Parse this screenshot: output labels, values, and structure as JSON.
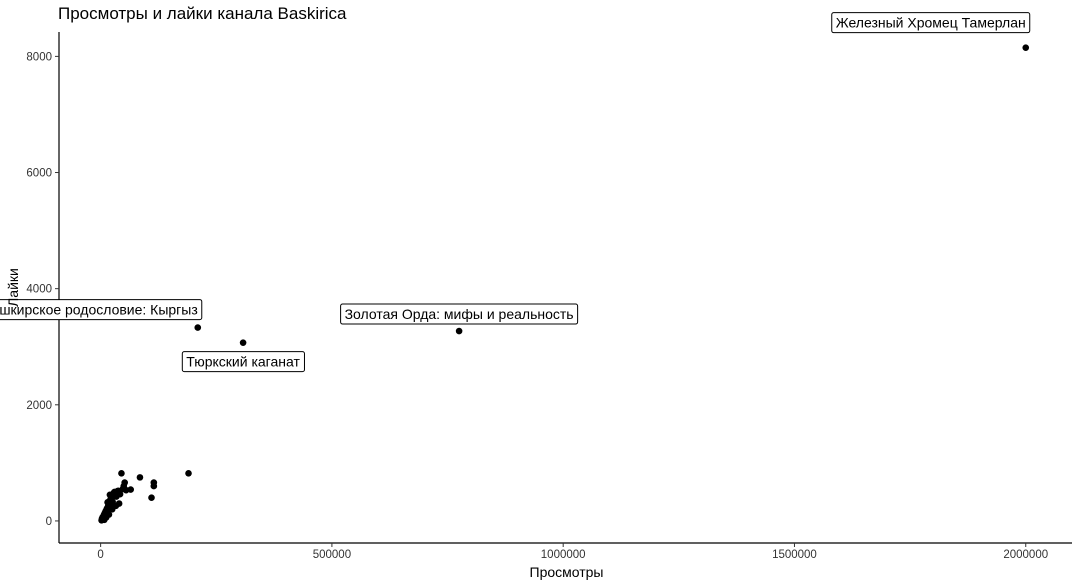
{
  "chart_data": {
    "type": "scatter",
    "title": "Просмотры и лайки канала Baskirica",
    "xlabel": "Просмотры",
    "ylabel": "Лайки",
    "xlim": [
      -90000,
      2100000
    ],
    "ylim": [
      -380,
      8420
    ],
    "x_ticks": [
      0,
      500000,
      1000000,
      1500000,
      2000000
    ],
    "x_tick_labels": [
      "0",
      "500000",
      "1000000",
      "1500000",
      "2000000"
    ],
    "y_ticks": [
      0,
      2000,
      4000,
      6000,
      8000
    ],
    "y_tick_labels": [
      "0",
      "2000",
      "4000",
      "6000",
      "8000"
    ],
    "grid": false,
    "points": [
      {
        "x": 2000,
        "y": 10
      },
      {
        "x": 3000,
        "y": 40
      },
      {
        "x": 4000,
        "y": 60
      },
      {
        "x": 5000,
        "y": 30
      },
      {
        "x": 6000,
        "y": 80
      },
      {
        "x": 7000,
        "y": 100
      },
      {
        "x": 8000,
        "y": 120
      },
      {
        "x": 9000,
        "y": 90
      },
      {
        "x": 10000,
        "y": 150
      },
      {
        "x": 11000,
        "y": 170
      },
      {
        "x": 12000,
        "y": 140
      },
      {
        "x": 13000,
        "y": 200
      },
      {
        "x": 14000,
        "y": 220
      },
      {
        "x": 15000,
        "y": 180
      },
      {
        "x": 16000,
        "y": 250
      },
      {
        "x": 17000,
        "y": 270
      },
      {
        "x": 18000,
        "y": 300
      },
      {
        "x": 19000,
        "y": 320
      },
      {
        "x": 20000,
        "y": 350
      },
      {
        "x": 21000,
        "y": 280
      },
      {
        "x": 22000,
        "y": 380
      },
      {
        "x": 23000,
        "y": 400
      },
      {
        "x": 24000,
        "y": 420
      },
      {
        "x": 25000,
        "y": 440
      },
      {
        "x": 26000,
        "y": 330
      },
      {
        "x": 27000,
        "y": 460
      },
      {
        "x": 28000,
        "y": 480
      },
      {
        "x": 30000,
        "y": 500
      },
      {
        "x": 32000,
        "y": 470
      },
      {
        "x": 34000,
        "y": 420
      },
      {
        "x": 36000,
        "y": 510
      },
      {
        "x": 38000,
        "y": 520
      },
      {
        "x": 40000,
        "y": 300
      },
      {
        "x": 42000,
        "y": 460
      },
      {
        "x": 45000,
        "y": 820
      },
      {
        "x": 48000,
        "y": 550
      },
      {
        "x": 50000,
        "y": 600
      },
      {
        "x": 52000,
        "y": 660
      },
      {
        "x": 55000,
        "y": 530
      },
      {
        "x": 65000,
        "y": 540
      },
      {
        "x": 85000,
        "y": 750
      },
      {
        "x": 110000,
        "y": 400
      },
      {
        "x": 115000,
        "y": 600
      },
      {
        "x": 115000,
        "y": 660
      },
      {
        "x": 190000,
        "y": 820
      },
      {
        "x": 8000,
        "y": 20
      },
      {
        "x": 12000,
        "y": 60
      },
      {
        "x": 18000,
        "y": 110
      },
      {
        "x": 25000,
        "y": 200
      },
      {
        "x": 33000,
        "y": 260
      },
      {
        "x": 15000,
        "y": 320
      },
      {
        "x": 20000,
        "y": 450
      },
      {
        "x": 210000,
        "y": 3330
      },
      {
        "x": 308000,
        "y": 3070
      },
      {
        "x": 775000,
        "y": 3270
      },
      {
        "x": 2000000,
        "y": 8150
      }
    ],
    "annotations": [
      {
        "text": "Железный Хромец Тамерлан",
        "x": 2000000,
        "y": 8150
      },
      {
        "text": "Башкирское родословие: Кыргыз",
        "x": 210000,
        "y": 3330
      },
      {
        "text": "Тюркский каганат",
        "x": 308000,
        "y": 3070
      },
      {
        "text": "Золотая Орда: мифы и реальность",
        "x": 775000,
        "y": 3270
      }
    ]
  }
}
